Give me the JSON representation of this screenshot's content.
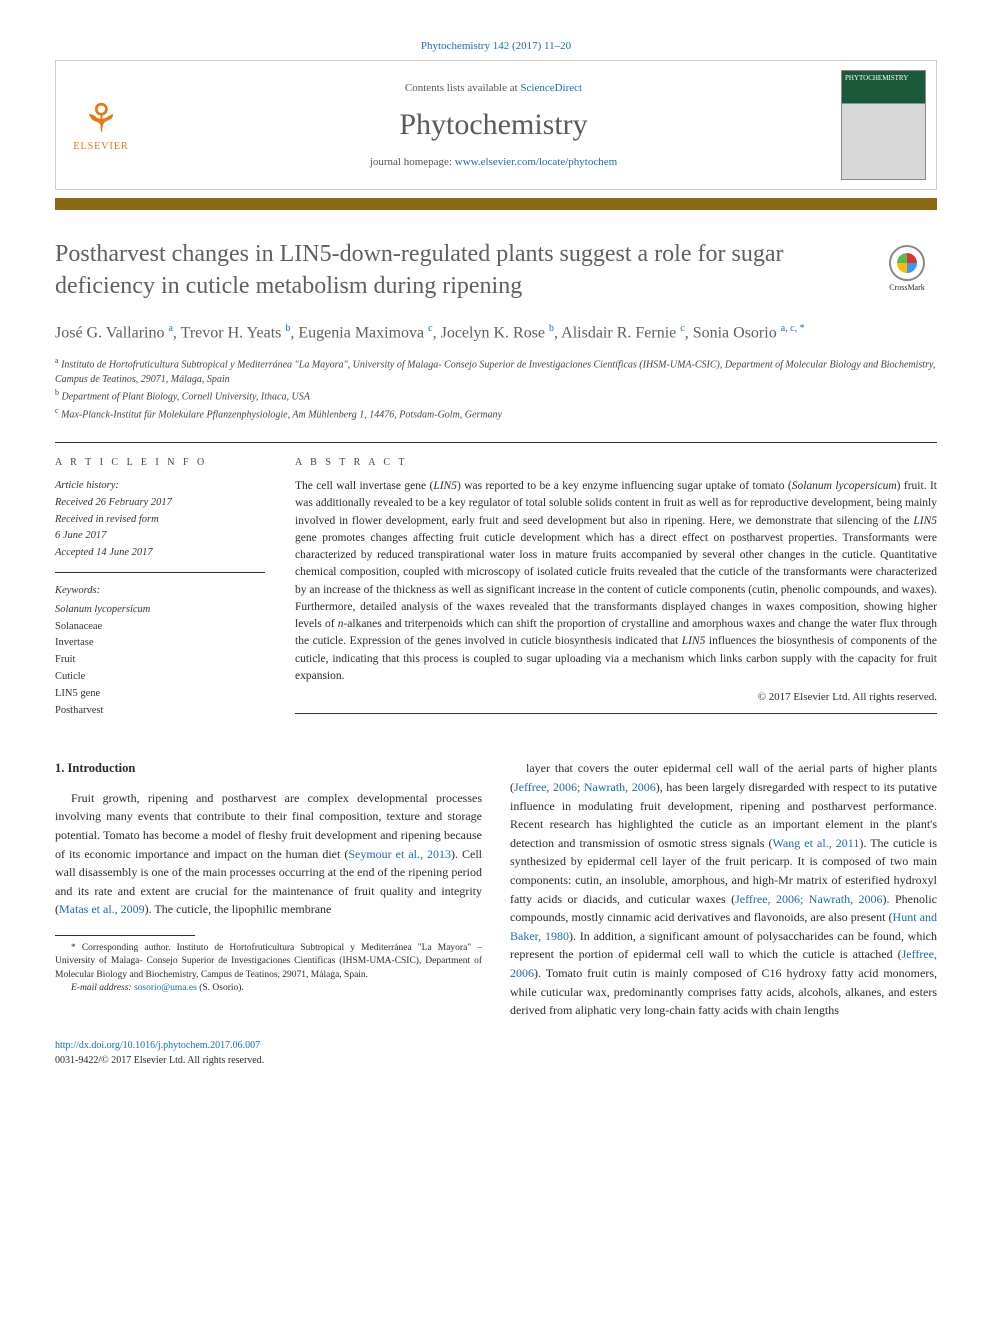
{
  "citation": "Phytochemistry 142 (2017) 11–20",
  "header": {
    "contents_prefix": "Contents lists available at ",
    "contents_link": "ScienceDirect",
    "journal_name": "Phytochemistry",
    "homepage_prefix": "journal homepage: ",
    "homepage_link": "www.elsevier.com/locate/phytochem",
    "publisher": "ELSEVIER",
    "cover_text": "PHYTOCHEMISTRY"
  },
  "crossmark": "CrossMark",
  "title": "Postharvest changes in LIN5-down-regulated plants suggest a role for sugar deficiency in cuticle metabolism during ripening",
  "authors_html": "José G. Vallarino <sup>a</sup>, Trevor H. Yeats <sup>b</sup>, Eugenia Maximova <sup>c</sup>, Jocelyn K. Rose <sup>b</sup>, Alisdair R. Fernie <sup>c</sup>, Sonia Osorio <sup>a, c, *</sup>",
  "affiliations": {
    "a": "Instituto de Hortofruticultura Subtropical y Mediterránea \"La Mayora\", University of Malaga- Consejo Superior de Investigaciones Científicas (IHSM-UMA-CSIC), Department of Molecular Biology and Biochemistry, Campus de Teatinos, 29071, Málaga, Spain",
    "b": "Department of Plant Biology, Cornell University, Ithaca, USA",
    "c": "Max-Planck-Institut für Molekulare Pflanzenphysiologie, Am Mühlenberg 1, 14476, Potsdam-Golm, Germany"
  },
  "article_info_label": "A R T I C L E   I N F O",
  "abstract_label": "A B S T R A C T",
  "history": {
    "label": "Article history:",
    "received": "Received 26 February 2017",
    "revised1": "Received in revised form",
    "revised2": "6 June 2017",
    "accepted": "Accepted 14 June 2017"
  },
  "keywords": {
    "label": "Keywords:",
    "items": [
      "Solanum lycopersicum",
      "Solanaceae",
      "Invertase",
      "Fruit",
      "Cuticle",
      "LIN5 gene",
      "Postharvest"
    ]
  },
  "abstract": "The cell wall invertase gene (LIN5) was reported to be a key enzyme influencing sugar uptake of tomato (Solanum lycopersicum) fruit. It was additionally revealed to be a key regulator of total soluble solids content in fruit as well as for reproductive development, being mainly involved in flower development, early fruit and seed development but also in ripening. Here, we demonstrate that silencing of the LIN5 gene promotes changes affecting fruit cuticle development which has a direct effect on postharvest properties. Transformants were characterized by reduced transpirational water loss in mature fruits accompanied by several other changes in the cuticle. Quantitative chemical composition, coupled with microscopy of isolated cuticle fruits revealed that the cuticle of the transformants were characterized by an increase of the thickness as well as significant increase in the content of cuticle components (cutin, phenolic compounds, and waxes). Furthermore, detailed analysis of the waxes revealed that the transformants displayed changes in waxes composition, showing higher levels of n-alkanes and triterpenoids which can shift the proportion of crystalline and amorphous waxes and change the water flux through the cuticle. Expression of the genes involved in cuticle biosynthesis indicated that LIN5 influences the biosynthesis of components of the cuticle, indicating that this process is coupled to sugar uploading via a mechanism which links carbon supply with the capacity for fruit expansion.",
  "abstract_copyright": "© 2017 Elsevier Ltd. All rights reserved.",
  "section1": {
    "heading": "1. Introduction",
    "col1": "Fruit growth, ripening and postharvest are complex developmental processes involving many events that contribute to their final composition, texture and storage potential. Tomato has become a model of fleshy fruit development and ripening because of its economic importance and impact on the human diet (Seymour et al., 2013). Cell wall disassembly is one of the main processes occurring at the end of the ripening period and its rate and extent are crucial for the maintenance of fruit quality and integrity (Matas et al., 2009). The cuticle, the lipophilic membrane",
    "col2": "layer that covers the outer epidermal cell wall of the aerial parts of higher plants (Jeffree, 2006; Nawrath, 2006), has been largely disregarded with respect to its putative influence in modulating fruit development, ripening and postharvest performance. Recent research has highlighted the cuticle as an important element in the plant's detection and transmission of osmotic stress signals (Wang et al., 2011). The cuticle is synthesized by epidermal cell layer of the fruit pericarp. It is composed of two main components: cutin, an insoluble, amorphous, and high-Mr matrix of esterified hydroxyl fatty acids or diacids, and cuticular waxes (Jeffree, 2006; Nawrath, 2006). Phenolic compounds, mostly cinnamic acid derivatives and flavonoids, are also present (Hunt and Baker, 1980). In addition, a significant amount of polysaccharides can be found, which represent the portion of epidermal cell wall to which the cuticle is attached (Jeffree, 2006). Tomato fruit cutin is mainly composed of C16 hydroxy fatty acid monomers, while cuticular wax, predominantly comprises fatty acids, alcohols, alkanes, and esters derived from aliphatic very long-chain fatty acids with chain lengths"
  },
  "footnote": {
    "corresponding": "* Corresponding author. Instituto de Hortofruticultura Subtropical y Mediterránea \"La Mayora\" – University of Malaga- Consejo Superior de Investigaciones Científicas (IHSM-UMA-CSIC), Department of Molecular Biology and Biochemistry, Campus de Teatinos, 29071, Málaga, Spain.",
    "email_label": "E-mail address: ",
    "email": "sosorio@uma.es",
    "email_suffix": " (S. Osorio)."
  },
  "footer": {
    "doi": "http://dx.doi.org/10.1016/j.phytochem.2017.06.007",
    "issn": "0031-9422/© 2017 Elsevier Ltd. All rights reserved."
  },
  "refs": {
    "seymour": "Seymour et al., 2013",
    "matas": "Matas et al., 2009",
    "jeffree": "Jeffree, 2006; Nawrath, 2006",
    "wang": "Wang et al., 2011",
    "jeffree2": "Jeffree, 2006; Nawrath, 2006",
    "hunt": "Hunt and Baker, 1980",
    "jeffree3": "Jeffree, 2006"
  },
  "colors": {
    "link": "#1a6cb8",
    "brown_bar": "#8b6914",
    "elsevier": "#e47911",
    "text_grey": "#5f5f5f"
  }
}
